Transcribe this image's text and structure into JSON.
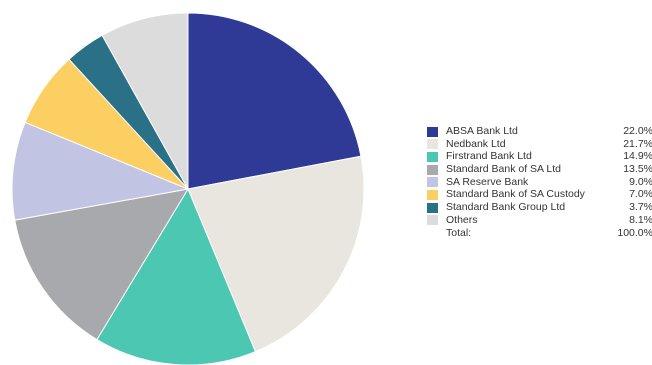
{
  "chart_data": {
    "type": "pie",
    "title": "",
    "start_angle_deg": 0,
    "direction": "clockwise",
    "legend_position": "right",
    "slices": [
      {
        "label": "ABSA Bank Ltd",
        "value": 22.0,
        "display": "22.0%",
        "color": "#2e3a96"
      },
      {
        "label": "Nedbank Ltd",
        "value": 21.7,
        "display": "21.7%",
        "color": "#e8e6df"
      },
      {
        "label": "Firstrand Bank Ltd",
        "value": 14.9,
        "display": "14.9%",
        "color": "#4cc7b2"
      },
      {
        "label": "Standard Bank of SA Ltd",
        "value": 13.5,
        "display": "13.5%",
        "color": "#a7a9ac"
      },
      {
        "label": "SA Reserve Bank",
        "value": 9.0,
        "display": "9.0%",
        "color": "#c2c4e4"
      },
      {
        "label": "Standard Bank of SA Custody",
        "value": 7.0,
        "display": "7.0%",
        "color": "#fbcf62"
      },
      {
        "label": "Standard Bank Group Ltd",
        "value": 3.7,
        "display": "3.7%",
        "color": "#2a7087"
      },
      {
        "label": "Others",
        "value": 8.1,
        "display": "8.1%",
        "color": "#dcdcdd"
      }
    ],
    "total": {
      "label": "Total:",
      "display": "100.0%"
    }
  }
}
